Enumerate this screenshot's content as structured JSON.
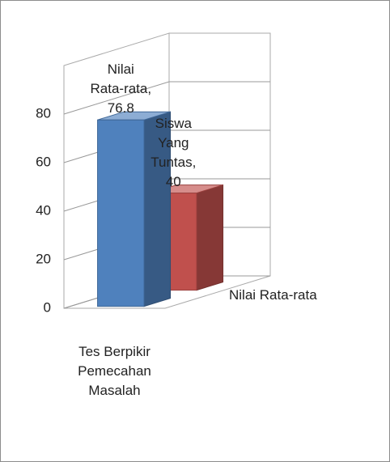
{
  "chart_data": {
    "type": "bar3d",
    "categories": [
      "Tes Berpikir Pemecahan Masalah"
    ],
    "series": [
      {
        "name": "Nilai Rata-rata",
        "color": "#4f81bd",
        "values": [
          76.8
        ],
        "value_labels": [
          "Nilai Rata-rata, 76.8"
        ]
      },
      {
        "name": "Siswa Yang Tuntas",
        "color": "#c0504d",
        "values": [
          40
        ],
        "value_labels": [
          "Siswa Yang Tuntas, 40"
        ]
      }
    ],
    "ylim": [
      0,
      100
    ],
    "yticks": [
      0,
      20,
      40,
      60,
      80
    ],
    "grid": true
  }
}
